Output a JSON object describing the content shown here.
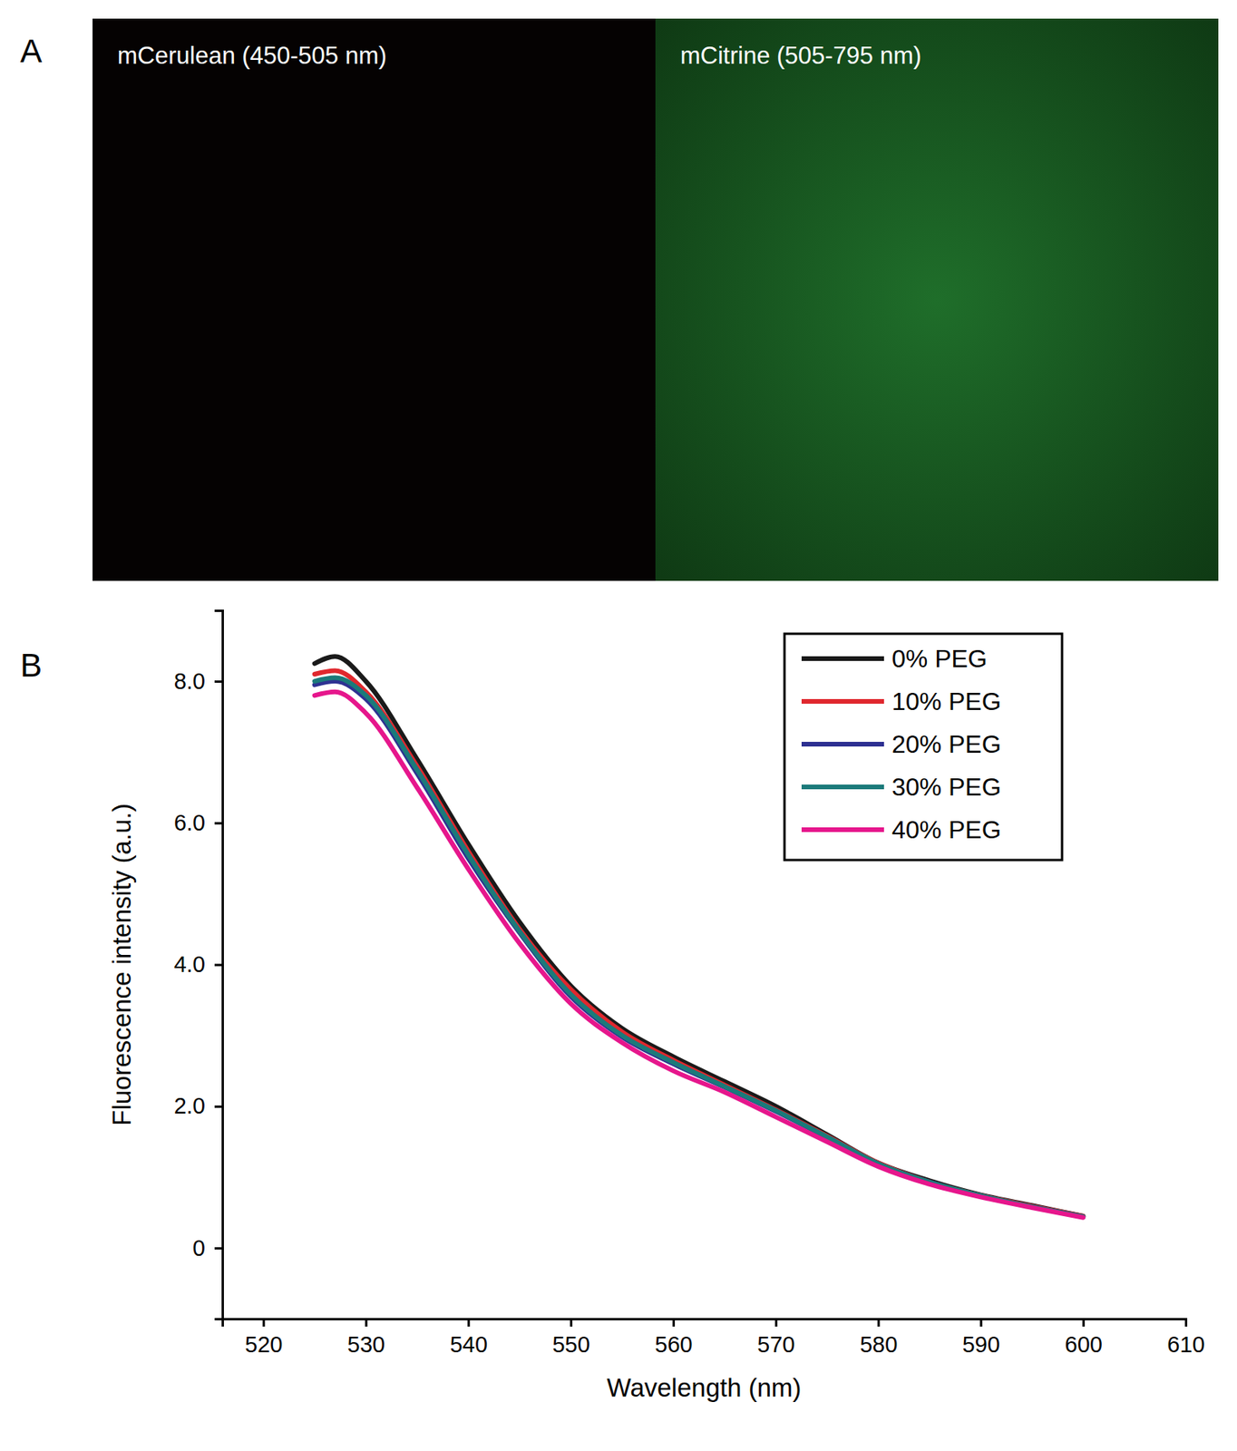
{
  "figure": {
    "panels": [
      {
        "label": "A",
        "images": [
          {
            "caption": "mCerulean (450-505 nm)"
          },
          {
            "caption": "mCitrine (505-795 nm)"
          }
        ]
      },
      {
        "label": "B"
      }
    ]
  },
  "chart_data": {
    "type": "line",
    "x_label": "Wavelength (nm)",
    "y_label": "Fluorescence intensity (a.u.)",
    "x": [
      525,
      527,
      530,
      535,
      540,
      545,
      550,
      555,
      560,
      565,
      570,
      575,
      580,
      585,
      590,
      595,
      600
    ],
    "series": [
      {
        "name": "0% PEG",
        "color": "#1a1a1a",
        "values": [
          8.25,
          8.35,
          8.0,
          6.9,
          5.7,
          4.6,
          3.7,
          3.1,
          2.7,
          2.35,
          2.0,
          1.6,
          1.2,
          0.95,
          0.75,
          0.6,
          0.45
        ]
      },
      {
        "name": "10% PEG",
        "color": "#e0282e",
        "values": [
          8.1,
          8.15,
          7.85,
          6.8,
          5.6,
          4.5,
          3.65,
          3.05,
          2.65,
          2.3,
          1.95,
          1.58,
          1.2,
          0.93,
          0.74,
          0.59,
          0.45
        ]
      },
      {
        "name": "20% PEG",
        "color": "#2e3192",
        "values": [
          7.95,
          8.0,
          7.75,
          6.7,
          5.5,
          4.45,
          3.55,
          2.98,
          2.6,
          2.27,
          1.93,
          1.56,
          1.18,
          0.93,
          0.73,
          0.58,
          0.44
        ]
      },
      {
        "name": "30% PEG",
        "color": "#1b7a7a",
        "values": [
          8.0,
          8.05,
          7.8,
          6.75,
          5.55,
          4.47,
          3.58,
          3.0,
          2.62,
          2.28,
          1.94,
          1.57,
          1.19,
          0.93,
          0.74,
          0.58,
          0.44
        ]
      },
      {
        "name": "40% PEG",
        "color": "#e6168c",
        "values": [
          7.8,
          7.85,
          7.55,
          6.5,
          5.35,
          4.3,
          3.45,
          2.9,
          2.5,
          2.2,
          1.85,
          1.5,
          1.15,
          0.9,
          0.72,
          0.57,
          0.43
        ]
      }
    ],
    "xlim": [
      516,
      610
    ],
    "xticks": [
      520,
      530,
      540,
      550,
      560,
      570,
      580,
      590,
      600,
      610
    ],
    "ylim": [
      -1,
      9
    ],
    "yticks": [
      0,
      {
        "value": 2,
        "label": "2.0"
      },
      {
        "value": 4,
        "label": "4.0"
      },
      {
        "value": 6,
        "label": "6.0"
      },
      {
        "value": 8,
        "label": "8.0"
      }
    ],
    "legend": "upper right",
    "grid": false
  }
}
